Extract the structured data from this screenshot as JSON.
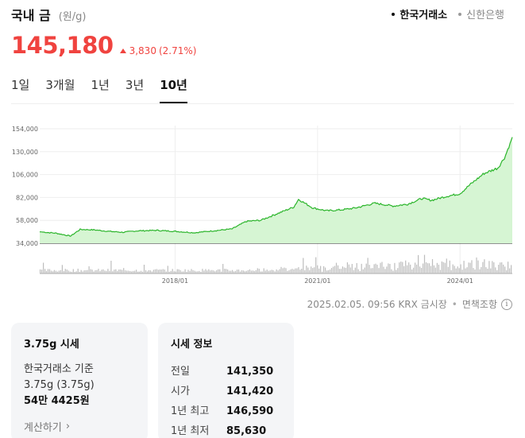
{
  "header": {
    "title": "국내 금",
    "unit": "(원/g)",
    "sources": [
      {
        "label": "한국거래소",
        "active": true
      },
      {
        "label": "신한은행",
        "active": false
      }
    ]
  },
  "price": {
    "value": "145,180",
    "change": "3,830",
    "change_pct": "(2.71%)",
    "color": "#f0433f"
  },
  "tabs": [
    {
      "label": "1일",
      "active": false
    },
    {
      "label": "3개월",
      "active": false
    },
    {
      "label": "1년",
      "active": false
    },
    {
      "label": "3년",
      "active": false
    },
    {
      "label": "10년",
      "active": true
    }
  ],
  "chart_data": {
    "type": "area",
    "y_ticks": [
      "154,000",
      "130,000",
      "106,000",
      "82,000",
      "58,000",
      "34,000"
    ],
    "ylim": [
      34000,
      154000
    ],
    "x_ticks": [
      {
        "label": "2018/01",
        "value": 2018.0
      },
      {
        "label": "2021/01",
        "value": 2021.0
      },
      {
        "label": "2024/01",
        "value": 2024.0
      }
    ],
    "xlim": [
      2015.15,
      2025.1
    ],
    "line_color": "#2bb52b",
    "fill_color": "#d6f5d3",
    "series": [
      {
        "x": [
          2015.15,
          2015.5,
          2015.8,
          2016.0,
          2016.3,
          2016.6,
          2016.9,
          2017.2,
          2017.6,
          2018.0,
          2018.4,
          2018.8,
          2019.2,
          2019.5,
          2019.8,
          2020.2,
          2020.5,
          2020.6,
          2020.9,
          2021.2,
          2021.5,
          2021.8,
          2022.2,
          2022.6,
          2022.9,
          2023.2,
          2023.4,
          2023.7,
          2024.0,
          2024.2,
          2024.5,
          2024.8,
          2024.95,
          2025.1
        ],
        "y": [
          46000,
          44500,
          41500,
          48500,
          48000,
          46500,
          45500,
          47000,
          47500,
          46500,
          45000,
          47000,
          49000,
          57000,
          58000,
          66000,
          72000,
          80000,
          71000,
          68000,
          69000,
          71000,
          76000,
          73000,
          75000,
          81000,
          79000,
          83000,
          86000,
          95000,
          107000,
          113000,
          125000,
          145180
        ]
      }
    ],
    "volume_color": "#bdbdbd"
  },
  "timestamp": {
    "text": "2025.02.05. 09:56 KRX 금시장",
    "sep": "•",
    "disclaimer": "면책조항",
    "info_icon": "i"
  },
  "card_local": {
    "title": "3.75g 시세",
    "basis": "한국거래소 기준",
    "weight": "3.75g (3.75g)",
    "amount": "54만 4425원",
    "calc_label": "계산하기",
    "chevron": "›"
  },
  "card_info": {
    "title": "시세 정보",
    "rows": [
      {
        "label": "전일",
        "value": "141,350"
      },
      {
        "label": "시가",
        "value": "141,420"
      },
      {
        "label": "1년 최고",
        "value": "146,590"
      },
      {
        "label": "1년 최저",
        "value": "85,630"
      }
    ]
  }
}
